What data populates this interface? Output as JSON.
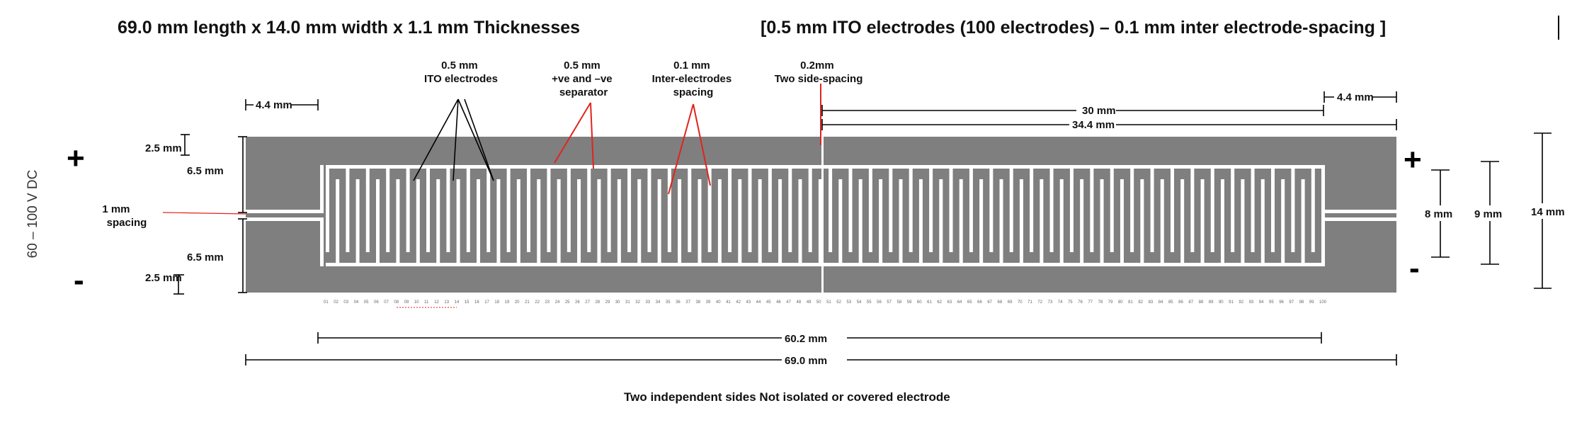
{
  "title": {
    "left": "69.0 mm length x 14.0 mm width x    1.1 mm Thicknesses",
    "right": "[0.5 mm ITO electrodes (100 electrodes) – 0.1 mm inter electrode-spacing ]"
  },
  "annotations": {
    "ito_electrodes": [
      "0.5 mm",
      "ITO electrodes"
    ],
    "separator": [
      "0.5 mm",
      "+ve and –ve",
      "separator"
    ],
    "inter_spacing": [
      "0.1 mm",
      "Inter-electrodes",
      "spacing"
    ],
    "side_spacing": [
      "0.2mm",
      "Two side-spacing"
    ]
  },
  "dimensions": {
    "left_4_4": "4.4 mm",
    "right_4_4": "4.4 mm",
    "d30": "30 mm",
    "d34_4": "34.4 mm",
    "top_2_5": "2.5 mm",
    "top_6_5": "6.5 mm",
    "gap_1mm": [
      "1 mm",
      "spacing"
    ],
    "bot_6_5": "6.5 mm",
    "bot_2_5": "2.5 mm",
    "r8": "8 mm",
    "r9": "9 mm",
    "r14": "14 mm",
    "d60_2": "60.2 mm",
    "d69": "69.0 mm"
  },
  "polarity": {
    "left_plus": "+",
    "left_minus": "-",
    "right_plus": "+",
    "right_minus": "-"
  },
  "voltage": "60 – 100  V   DC",
  "electrode_count": 100,
  "footer": "Two independent sides  Not isolated or covered electrode",
  "colors": {
    "substrate": "#7f7f7f",
    "electrode": "#ffffff",
    "pointer_red": "#e0241c",
    "pointer_black": "#000000"
  }
}
